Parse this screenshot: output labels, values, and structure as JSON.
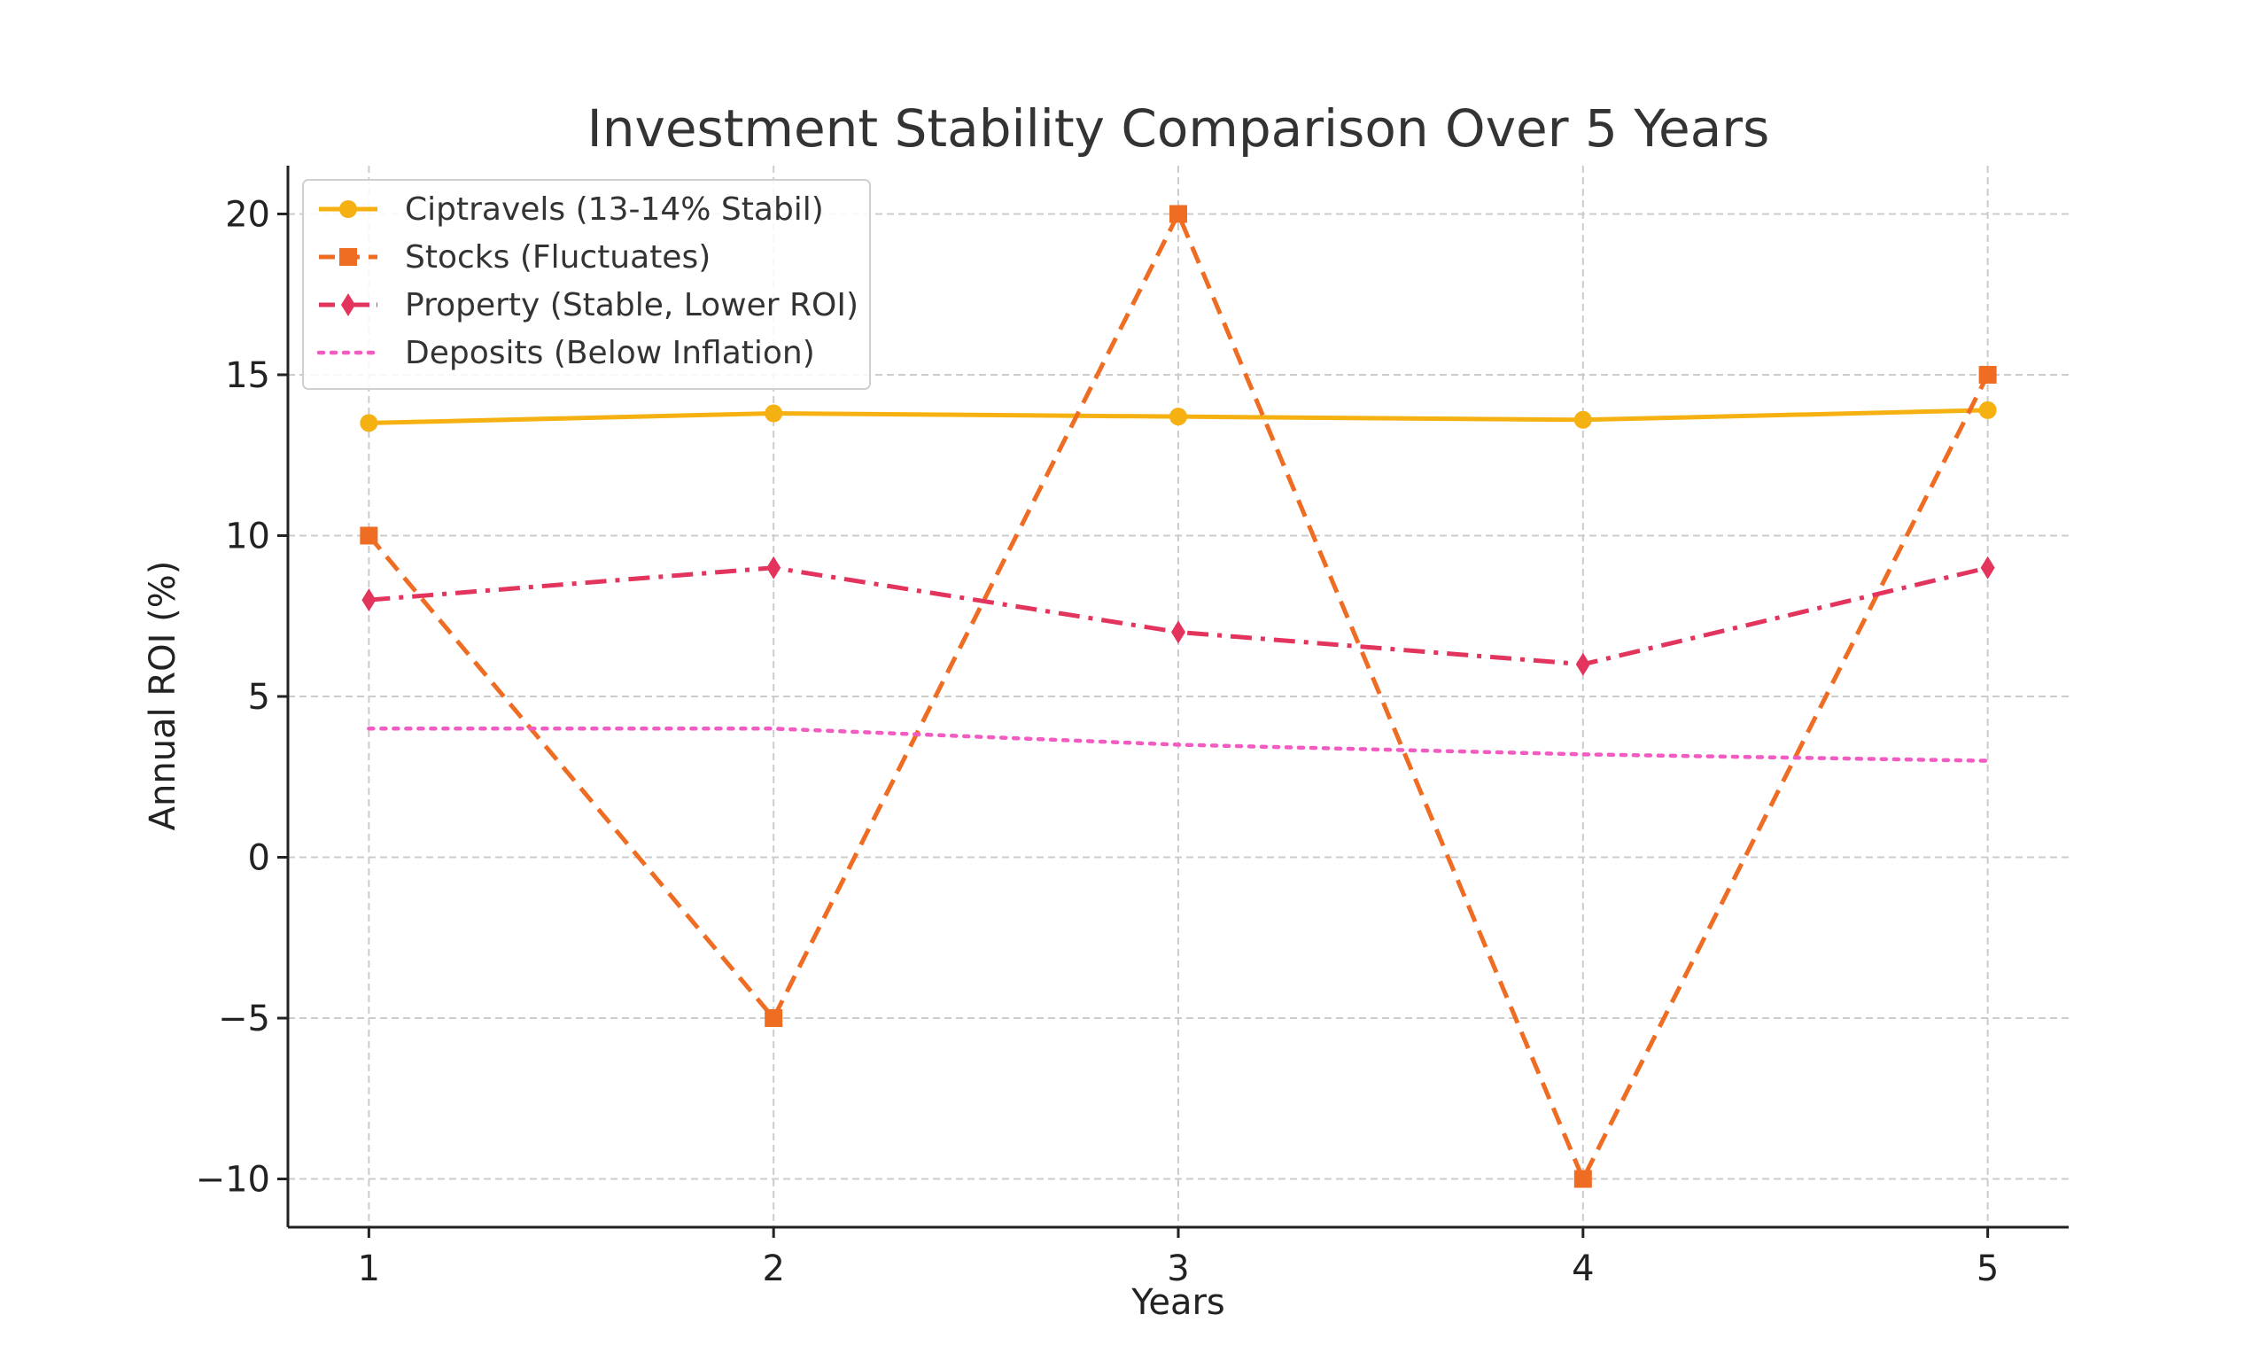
{
  "chart_data": {
    "type": "line",
    "title": "Investment Stability Comparison Over 5 Years",
    "xlabel": "Years",
    "ylabel": "Annual ROI (%)",
    "x": [
      1,
      2,
      3,
      4,
      5
    ],
    "x_tick_labels": [
      "1",
      "2",
      "3",
      "4",
      "5"
    ],
    "y_ticks": [
      -10,
      -5,
      0,
      5,
      10,
      15,
      20
    ],
    "y_tick_labels": [
      "−10",
      "−5",
      "0",
      "5",
      "10",
      "15",
      "20"
    ],
    "xlim": [
      0.8,
      5.2
    ],
    "ylim": [
      -11.5,
      21.5
    ],
    "grid": true,
    "legend_position": "top-left",
    "series": [
      {
        "name": "Ciptravels (13-14% Stabil)",
        "values": [
          13.5,
          13.8,
          13.7,
          13.6,
          13.9
        ],
        "color": "#f5b012",
        "line_style": "solid",
        "marker": "circle"
      },
      {
        "name": "Stocks (Fluctuates)",
        "values": [
          10,
          -5,
          20,
          -10,
          15
        ],
        "color": "#ef6c23",
        "line_style": "dashed",
        "marker": "square"
      },
      {
        "name": "Property (Stable, Lower ROI)",
        "values": [
          8,
          9,
          7,
          6,
          9
        ],
        "color": "#e2345d",
        "line_style": "dashdot",
        "marker": "diamond"
      },
      {
        "name": "Deposits (Below Inflation)",
        "values": [
          4,
          4,
          3.5,
          3.2,
          3
        ],
        "color": "#f05cc0",
        "line_style": "dotted",
        "marker": "none"
      }
    ]
  }
}
